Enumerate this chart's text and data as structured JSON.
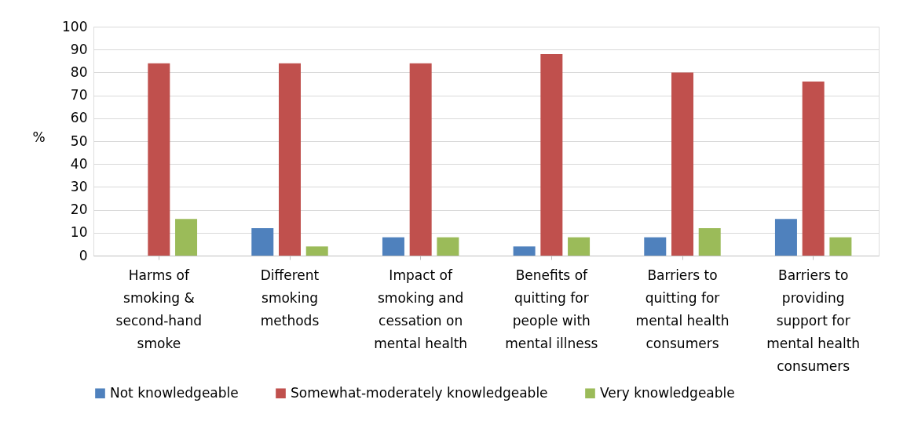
{
  "chart_data": {
    "type": "bar",
    "ylabel": "%",
    "categories": [
      "Harms of smoking & second-hand smoke",
      "Different smoking methods",
      "Impact of smoking and cessation on mental health",
      "Benefits of quitting for people with mental illness",
      "Barriers to quitting for mental health consumers",
      "Barriers to providing support for mental health consumers"
    ],
    "series": [
      {
        "name": "Not knowledgeable",
        "color": "#4f81bd",
        "values": [
          0,
          12,
          8,
          4,
          8,
          16
        ]
      },
      {
        "name": "Somewhat-moderately knowledgeable",
        "color": "#c0504d",
        "values": [
          84,
          84,
          84,
          88,
          80,
          76
        ]
      },
      {
        "name": "Very knowledgeable",
        "color": "#9bbb59",
        "values": [
          16,
          4,
          8,
          8,
          12,
          8
        ]
      }
    ],
    "ylim": [
      0,
      100
    ],
    "yticks": [
      0,
      10,
      20,
      30,
      40,
      50,
      60,
      70,
      80,
      90,
      100
    ],
    "grid": "y",
    "legend": "bottom"
  }
}
